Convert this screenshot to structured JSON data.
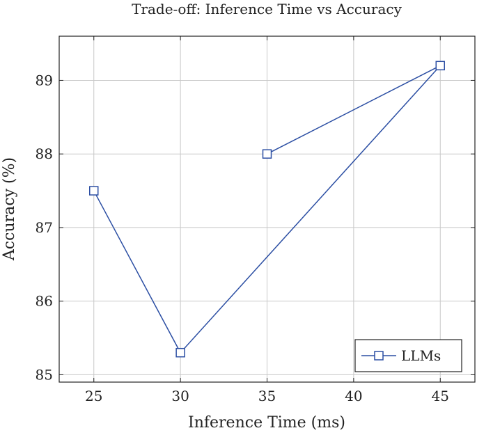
{
  "chart_data": {
    "type": "line",
    "title": "Trade-off: Inference Time vs Accuracy",
    "xlabel": "Inference Time (ms)",
    "ylabel": "Accuracy (%)",
    "xlim": [
      23,
      47
    ],
    "ylim": [
      84.9,
      89.6
    ],
    "xticks": [
      25,
      30,
      35,
      40,
      45
    ],
    "yticks": [
      85,
      86,
      87,
      88,
      89
    ],
    "grid": true,
    "legend_position": "bottom-right",
    "series": [
      {
        "name": "LLMs",
        "color": "#2b4ea3",
        "marker": "square",
        "x": [
          25,
          30,
          45,
          35
        ],
        "y": [
          87.5,
          85.3,
          89.2,
          88.0
        ]
      }
    ]
  }
}
